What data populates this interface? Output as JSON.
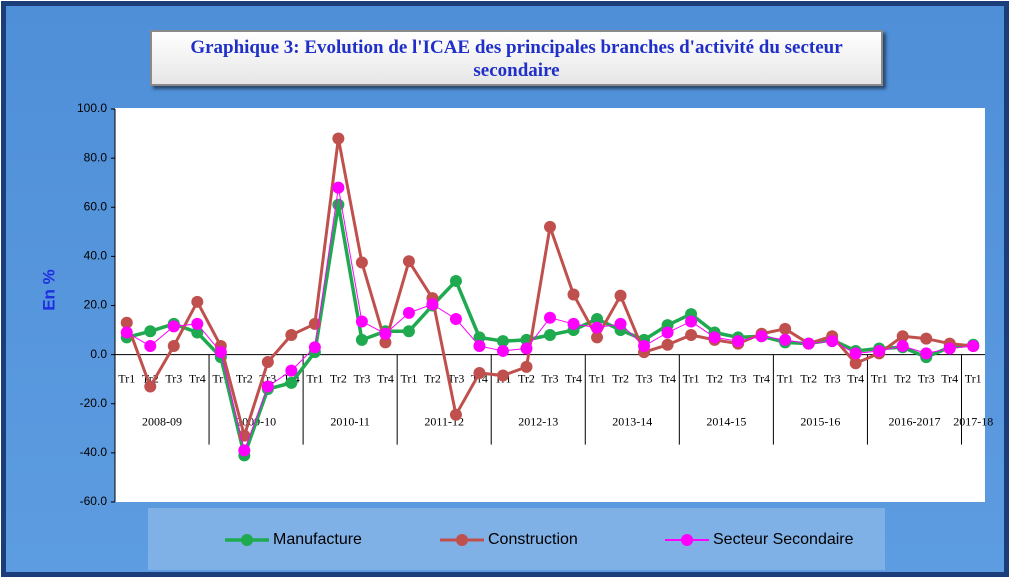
{
  "chart_data": {
    "type": "line",
    "title": "Graphique 3: Evolution de l'ICAE des principales branches d'activité du secteur secondaire",
    "ylabel": "En %",
    "groups": [
      {
        "label": "2008-09",
        "categories": [
          "Tr1",
          "Tr2",
          "Tr3",
          "Tr4"
        ]
      },
      {
        "label": "2009-10",
        "categories": [
          "Tr1",
          "Tr2",
          "Tr3",
          "Tr4"
        ]
      },
      {
        "label": "2010-11",
        "categories": [
          "Tr1",
          "Tr2",
          "Tr3",
          "Tr4"
        ]
      },
      {
        "label": "2011-12",
        "categories": [
          "Tr1",
          "Tr2",
          "Tr3",
          "Tr4"
        ]
      },
      {
        "label": "2012-13",
        "categories": [
          "Tr1",
          "Tr2",
          "Tr3",
          "Tr4"
        ]
      },
      {
        "label": "2013-14",
        "categories": [
          "Tr1",
          "Tr2",
          "Tr3",
          "Tr4"
        ]
      },
      {
        "label": "2014-15",
        "categories": [
          "Tr1",
          "Tr2",
          "Tr3",
          "Tr4"
        ]
      },
      {
        "label": "2015-16",
        "categories": [
          "Tr1",
          "Tr2",
          "Tr3",
          "Tr4"
        ]
      },
      {
        "label": "2016-2017",
        "categories": [
          "Tr1",
          "Tr2",
          "Tr3",
          "Tr4"
        ]
      },
      {
        "label": "2017-18",
        "categories": [
          "Tr1"
        ]
      }
    ],
    "series": [
      {
        "name": "Manufacture",
        "color": "#1faa50",
        "width": 3.5,
        "values": [
          7,
          9.5,
          12.5,
          9,
          -1,
          -41,
          -14,
          -11.5,
          1,
          61,
          6,
          9.5,
          9.5,
          20,
          30,
          7,
          5.5,
          6,
          8,
          10,
          14.5,
          10,
          6,
          12,
          16.5,
          9,
          7,
          7.5,
          5,
          4.5,
          6,
          1.5,
          2.5,
          3,
          -1,
          3,
          4
        ]
      },
      {
        "name": "Construction",
        "color": "#c0504d",
        "width": 3,
        "values": [
          13,
          -13,
          3.5,
          21.5,
          3.5,
          -33,
          -3,
          8,
          12.5,
          88,
          37.5,
          5,
          38,
          23,
          -24.5,
          -7.5,
          -8.5,
          -5,
          52,
          24.5,
          7,
          24,
          1,
          4,
          8,
          6,
          4.5,
          8.5,
          10.5,
          4.5,
          7.5,
          -3.5,
          0.5,
          7.5,
          6.5,
          4.5,
          3.5
        ]
      },
      {
        "name": "Secteur Secondaire",
        "color": "#ff00ff",
        "width": 1,
        "values": [
          9,
          3.5,
          11.5,
          12.5,
          1,
          -39,
          -13,
          -6.5,
          3,
          68,
          13.5,
          8.5,
          17,
          20.5,
          14.5,
          3.5,
          1.5,
          2.5,
          15,
          12.5,
          11,
          12.5,
          3.5,
          9,
          13.5,
          7,
          5.5,
          7.5,
          6,
          4.5,
          5.5,
          0.5,
          1.5,
          3.5,
          0.5,
          2.5,
          3.5
        ]
      }
    ],
    "ylim": [
      -60,
      100
    ],
    "yticks": [
      {
        "value": -60,
        "label": "-60.0"
      },
      {
        "value": -40,
        "label": "-40.0"
      },
      {
        "value": -20,
        "label": "-20.0"
      },
      {
        "value": 0,
        "label": "0.0"
      },
      {
        "value": 20,
        "label": "20.0"
      },
      {
        "value": 40,
        "label": "40.0"
      },
      {
        "value": 60,
        "label": "60.0"
      },
      {
        "value": 80,
        "label": "80.0"
      },
      {
        "value": 100,
        "label": "100.0"
      }
    ],
    "grid": false,
    "legend": "bottom"
  }
}
